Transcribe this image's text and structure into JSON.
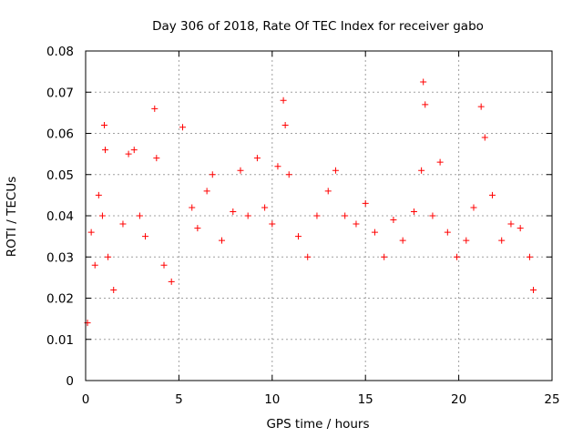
{
  "chart_data": {
    "type": "scatter",
    "title": "Day 306 of 2018, Rate Of TEC Index for receiver gabo",
    "xlabel": "GPS time / hours",
    "ylabel": "ROTI / TECUs",
    "xlim": [
      0,
      25
    ],
    "ylim": [
      0,
      0.08
    ],
    "xticks": [
      0,
      5,
      10,
      15,
      20,
      25
    ],
    "xtick_labels": [
      "0",
      "5",
      "10",
      "15",
      "20",
      "25"
    ],
    "yticks": [
      0,
      0.01,
      0.02,
      0.03,
      0.04,
      0.05,
      0.06,
      0.07,
      0.08
    ],
    "ytick_labels": [
      "0",
      "0.01",
      "0.02",
      "0.03",
      "0.04",
      "0.05",
      "0.06",
      "0.07",
      "0.08"
    ],
    "grid": true,
    "marker": "+",
    "marker_color": "#ff0000",
    "series": [
      {
        "name": "ROTI",
        "points": [
          [
            0.1,
            0.014
          ],
          [
            0.3,
            0.036
          ],
          [
            0.5,
            0.028
          ],
          [
            0.7,
            0.045
          ],
          [
            0.9,
            0.04
          ],
          [
            1.0,
            0.062
          ],
          [
            1.05,
            0.056
          ],
          [
            1.2,
            0.03
          ],
          [
            1.5,
            0.022
          ],
          [
            2.0,
            0.038
          ],
          [
            2.3,
            0.055
          ],
          [
            2.6,
            0.056
          ],
          [
            2.9,
            0.04
          ],
          [
            3.2,
            0.035
          ],
          [
            3.7,
            0.066
          ],
          [
            3.8,
            0.054
          ],
          [
            4.2,
            0.028
          ],
          [
            4.6,
            0.024
          ],
          [
            5.2,
            0.0615
          ],
          [
            5.7,
            0.042
          ],
          [
            6.0,
            0.037
          ],
          [
            6.5,
            0.046
          ],
          [
            6.8,
            0.05
          ],
          [
            7.3,
            0.034
          ],
          [
            7.9,
            0.041
          ],
          [
            8.3,
            0.051
          ],
          [
            8.7,
            0.04
          ],
          [
            9.2,
            0.054
          ],
          [
            9.6,
            0.042
          ],
          [
            10.0,
            0.038
          ],
          [
            10.3,
            0.052
          ],
          [
            10.6,
            0.068
          ],
          [
            10.7,
            0.062
          ],
          [
            10.9,
            0.05
          ],
          [
            11.4,
            0.035
          ],
          [
            11.9,
            0.03
          ],
          [
            12.4,
            0.04
          ],
          [
            13.0,
            0.046
          ],
          [
            13.4,
            0.051
          ],
          [
            13.9,
            0.04
          ],
          [
            14.5,
            0.038
          ],
          [
            15.0,
            0.043
          ],
          [
            15.5,
            0.036
          ],
          [
            16.0,
            0.03
          ],
          [
            16.5,
            0.039
          ],
          [
            17.0,
            0.034
          ],
          [
            17.6,
            0.041
          ],
          [
            18.0,
            0.051
          ],
          [
            18.1,
            0.0725
          ],
          [
            18.2,
            0.067
          ],
          [
            18.6,
            0.04
          ],
          [
            19.0,
            0.053
          ],
          [
            19.4,
            0.036
          ],
          [
            19.9,
            0.03
          ],
          [
            20.4,
            0.034
          ],
          [
            20.8,
            0.042
          ],
          [
            21.2,
            0.0665
          ],
          [
            21.4,
            0.059
          ],
          [
            21.8,
            0.045
          ],
          [
            22.3,
            0.034
          ],
          [
            22.8,
            0.038
          ],
          [
            23.3,
            0.037
          ],
          [
            23.8,
            0.03
          ],
          [
            24.0,
            0.022
          ]
        ]
      }
    ]
  }
}
